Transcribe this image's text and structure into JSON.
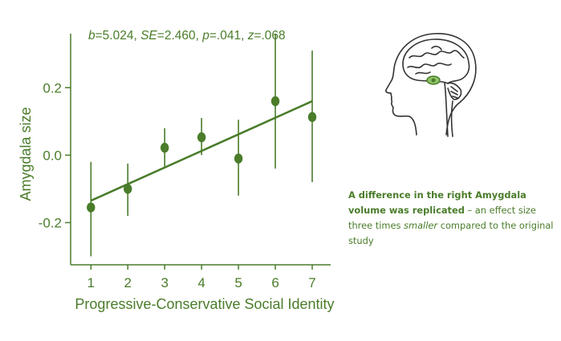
{
  "colors": {
    "accent": "#4a7c2a"
  },
  "stats": {
    "b_label": "b",
    "b_value": "=5.024, ",
    "se_label": "SE",
    "se_value": "=2.460, ",
    "p_label": "p",
    "p_value": "=.041, ",
    "z_label": "z",
    "z_value": "=.068"
  },
  "caption": {
    "bold": "A difference in the right Amygdala volume was replicated",
    "text1": " – an effect size three times ",
    "italic": "smaller",
    "text2": " compared to the original study"
  },
  "illustration": {
    "icon": "head-brain-sagittal-icon"
  },
  "chart_data": {
    "type": "scatter",
    "xlabel": "Progressive-Conservative Social Identity",
    "ylabel": "Amygdala size",
    "x": [
      1,
      2,
      3,
      4,
      5,
      6,
      7
    ],
    "y": [
      -0.155,
      -0.1,
      0.022,
      0.053,
      -0.01,
      0.16,
      0.113
    ],
    "y_err_low": [
      -0.3,
      -0.18,
      -0.035,
      0.0,
      -0.12,
      -0.04,
      -0.08
    ],
    "y_err_high": [
      -0.02,
      -0.025,
      0.08,
      0.11,
      0.105,
      0.36,
      0.31
    ],
    "fit_line": {
      "x": [
        1,
        7
      ],
      "y": [
        -0.135,
        0.16
      ]
    },
    "xticks": [
      1,
      2,
      3,
      4,
      5,
      6,
      7
    ],
    "yticks": [
      -0.2,
      0.0,
      0.2
    ],
    "ytick_labels": [
      "-0.2",
      "0.0",
      "0.2"
    ],
    "xlim": [
      0.45,
      7.5
    ],
    "ylim": [
      -0.325,
      0.36
    ],
    "grid": false
  }
}
